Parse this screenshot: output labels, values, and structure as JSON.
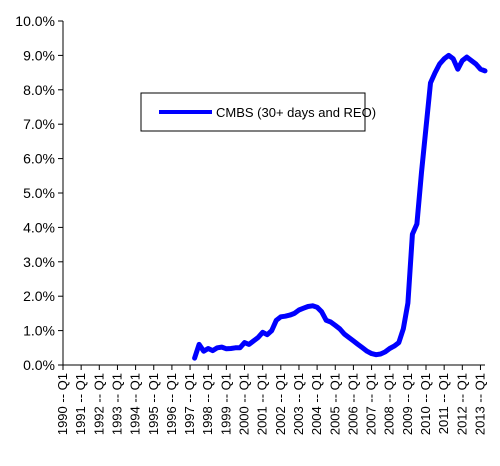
{
  "chart_data": {
    "type": "line",
    "title": "",
    "xlabel": "",
    "ylabel": "",
    "ylim": [
      0,
      10
    ],
    "y_tick_labels": [
      "0.0%",
      "1.0%",
      "2.0%",
      "3.0%",
      "4.0%",
      "5.0%",
      "6.0%",
      "7.0%",
      "8.0%",
      "9.0%",
      "10.0%"
    ],
    "x_tick_labels": [
      "1990 -- Q1",
      "1991 -- Q1",
      "1992 -- Q1",
      "1993 -- Q1",
      "1994 -- Q1",
      "1995 -- Q1",
      "1996 -- Q1",
      "1997 -- Q1",
      "1998 -- Q1",
      "1999 -- Q1",
      "2000 -- Q1",
      "2001 -- Q1",
      "2002 -- Q1",
      "2003 -- Q1",
      "2004 -- Q1",
      "2005 -- Q1",
      "2006 -- Q1",
      "2007 -- Q1",
      "2008 -- Q1",
      "2009 -- Q1",
      "2010 -- Q1",
      "2011 -- Q1",
      "2012 -- Q1",
      "2013 -- Q1"
    ],
    "x_range": [
      1990,
      2013.25
    ],
    "grid": false,
    "legend_position": "upper-left inside plot",
    "series": [
      {
        "name": "CMBS (30+ days and REO)",
        "color": "#0000FF",
        "points": [
          [
            1997.25,
            0.2
          ],
          [
            1997.5,
            0.6
          ],
          [
            1997.75,
            0.4
          ],
          [
            1998.0,
            0.48
          ],
          [
            1998.25,
            0.42
          ],
          [
            1998.5,
            0.5
          ],
          [
            1998.75,
            0.52
          ],
          [
            1999.0,
            0.47
          ],
          [
            1999.25,
            0.48
          ],
          [
            1999.5,
            0.5
          ],
          [
            1999.75,
            0.5
          ],
          [
            2000.0,
            0.65
          ],
          [
            2000.25,
            0.6
          ],
          [
            2000.5,
            0.7
          ],
          [
            2000.75,
            0.8
          ],
          [
            2001.0,
            0.95
          ],
          [
            2001.25,
            0.88
          ],
          [
            2001.5,
            1.0
          ],
          [
            2001.75,
            1.3
          ],
          [
            2002.0,
            1.4
          ],
          [
            2002.25,
            1.42
          ],
          [
            2002.5,
            1.45
          ],
          [
            2002.75,
            1.5
          ],
          [
            2003.0,
            1.6
          ],
          [
            2003.25,
            1.65
          ],
          [
            2003.5,
            1.7
          ],
          [
            2003.75,
            1.72
          ],
          [
            2004.0,
            1.68
          ],
          [
            2004.25,
            1.55
          ],
          [
            2004.5,
            1.3
          ],
          [
            2004.75,
            1.25
          ],
          [
            2005.0,
            1.15
          ],
          [
            2005.25,
            1.05
          ],
          [
            2005.5,
            0.9
          ],
          [
            2005.75,
            0.8
          ],
          [
            2006.0,
            0.7
          ],
          [
            2006.25,
            0.6
          ],
          [
            2006.5,
            0.5
          ],
          [
            2006.75,
            0.4
          ],
          [
            2007.0,
            0.33
          ],
          [
            2007.25,
            0.3
          ],
          [
            2007.5,
            0.32
          ],
          [
            2007.75,
            0.38
          ],
          [
            2008.0,
            0.48
          ],
          [
            2008.25,
            0.55
          ],
          [
            2008.5,
            0.65
          ],
          [
            2008.75,
            1.05
          ],
          [
            2009.0,
            1.8
          ],
          [
            2009.25,
            3.8
          ],
          [
            2009.5,
            4.1
          ],
          [
            2009.75,
            5.6
          ],
          [
            2010.0,
            6.9
          ],
          [
            2010.25,
            8.2
          ],
          [
            2010.5,
            8.5
          ],
          [
            2010.75,
            8.75
          ],
          [
            2011.0,
            8.9
          ],
          [
            2011.25,
            9.0
          ],
          [
            2011.5,
            8.9
          ],
          [
            2011.75,
            8.6
          ],
          [
            2012.0,
            8.85
          ],
          [
            2012.25,
            8.95
          ],
          [
            2012.5,
            8.85
          ],
          [
            2012.75,
            8.75
          ],
          [
            2013.0,
            8.6
          ],
          [
            2013.25,
            8.55
          ]
        ]
      }
    ]
  }
}
